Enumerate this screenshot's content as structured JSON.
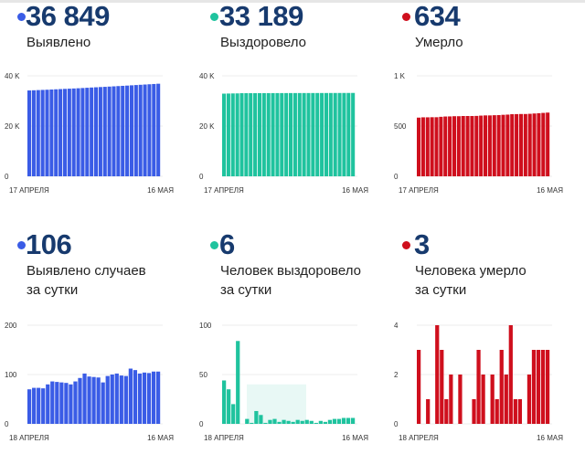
{
  "colors": {
    "confirmed": "#3a5ce6",
    "recovered": "#1fc39e",
    "deaths": "#cf0f1d",
    "number": "#173a6e"
  },
  "panels": [
    {
      "value": "36 849",
      "label": [
        "Выявлено"
      ],
      "color": "#3a5ce6"
    },
    {
      "value": "33 189",
      "label": [
        "Выздоровело"
      ],
      "color": "#1fc39e"
    },
    {
      "value": "634",
      "label": [
        "Умерло"
      ],
      "color": "#cf0f1d"
    },
    {
      "value": "106",
      "label": [
        "Выявлено случаев",
        "за сутки"
      ],
      "color": "#3a5ce6"
    },
    {
      "value": "6",
      "label": [
        "Человек выздоровело",
        "за сутки"
      ],
      "color": "#1fc39e"
    },
    {
      "value": "3",
      "label": [
        "Человека умерло",
        "за сутки"
      ],
      "color": "#cf0f1d"
    }
  ],
  "chart_data": [
    {
      "type": "bar",
      "color": "#3a5ce6",
      "ylim": [
        0,
        40000
      ],
      "yticks": [
        0,
        20000,
        40000
      ],
      "ytick_labels": [
        "0",
        "20 K",
        "40 K"
      ],
      "x_start_label": "17 АПРЕЛЯ",
      "x_end_label": "16 МАЯ",
      "grid": true,
      "values": [
        34177,
        34247,
        34320,
        34393,
        34465,
        34545,
        34631,
        34716,
        34800,
        34883,
        34963,
        35049,
        35142,
        35244,
        35340,
        35435,
        35529,
        35613,
        35710,
        35810,
        35912,
        36010,
        36107,
        36219,
        36328,
        36430,
        36534,
        36637,
        36743,
        36849
      ]
    },
    {
      "type": "bar",
      "color": "#1fc39e",
      "ylim": [
        0,
        40000
      ],
      "yticks": [
        0,
        20000,
        40000
      ],
      "ytick_labels": [
        "0",
        "20 K",
        "40 K"
      ],
      "x_start_label": "17 АПРЕЛЯ",
      "x_end_label": "16 МАЯ",
      "grid": true,
      "values": [
        32905,
        32949,
        32984,
        33004,
        33088,
        33088,
        33093,
        33094,
        33107,
        33116,
        33117,
        33121,
        33126,
        33128,
        33132,
        33135,
        33137,
        33141,
        33144,
        33148,
        33151,
        33152,
        33155,
        33157,
        33161,
        33166,
        33171,
        33177,
        33183,
        33189
      ]
    },
    {
      "type": "bar",
      "color": "#cf0f1d",
      "ylim": [
        0,
        1000
      ],
      "yticks": [
        0,
        500,
        1000
      ],
      "ytick_labels": [
        "0",
        "500",
        "1 K"
      ],
      "x_start_label": "17 АПРЕЛЯ",
      "x_end_label": "16 МАЯ",
      "grid": true,
      "values": [
        584,
        587,
        587,
        588,
        588,
        592,
        595,
        596,
        598,
        598,
        600,
        600,
        600,
        601,
        604,
        606,
        606,
        608,
        609,
        612,
        614,
        618,
        619,
        620,
        620,
        622,
        625,
        628,
        631,
        634
      ]
    },
    {
      "type": "bar",
      "color": "#3a5ce6",
      "ylim": [
        0,
        200
      ],
      "yticks": [
        0,
        100,
        200
      ],
      "ytick_labels": [
        "0",
        "100",
        "200"
      ],
      "x_start_label": "18 АПРЕЛЯ",
      "x_end_label": "16 МАЯ",
      "grid": true,
      "values": [
        70,
        73,
        73,
        72,
        80,
        86,
        85,
        84,
        83,
        80,
        86,
        93,
        102,
        96,
        95,
        94,
        84,
        97,
        100,
        102,
        98,
        97,
        112,
        109,
        102,
        104,
        103,
        106,
        106
      ]
    },
    {
      "type": "bar",
      "color": "#1fc39e",
      "ylim": [
        0,
        100
      ],
      "yticks": [
        0,
        50,
        100
      ],
      "ytick_labels": [
        "0",
        "50",
        "100"
      ],
      "x_start_label": "18 АПРЕЛЯ",
      "x_end_label": "16 МАЯ",
      "grid": true,
      "values": [
        44,
        35,
        20,
        84,
        0,
        5,
        1,
        13,
        9,
        1,
        4,
        5,
        2,
        4,
        3,
        2,
        4,
        3,
        4,
        3,
        1,
        3,
        2,
        4,
        5,
        5,
        6,
        6,
        6
      ]
    },
    {
      "type": "bar",
      "color": "#cf0f1d",
      "ylim": [
        0,
        4
      ],
      "yticks": [
        0,
        2,
        4
      ],
      "ytick_labels": [
        "0",
        "2",
        "4"
      ],
      "x_start_label": "18 АПРЕЛЯ",
      "x_end_label": "16 МАЯ",
      "grid": true,
      "values": [
        3,
        0,
        1,
        0,
        4,
        3,
        1,
        2,
        0,
        2,
        0,
        0,
        1,
        3,
        2,
        0,
        2,
        1,
        3,
        2,
        4,
        1,
        1,
        0,
        2,
        3,
        3,
        3,
        3
      ]
    }
  ]
}
